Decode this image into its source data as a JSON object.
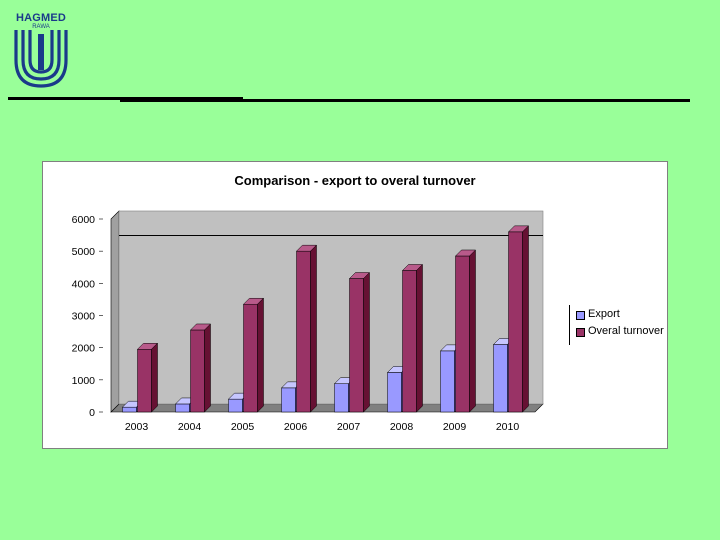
{
  "logo": {
    "name": "HAGMED",
    "subtitle": "RAWA"
  },
  "colors": {
    "background": "#99ff99",
    "export": "#9999ff",
    "turnover": "#993366",
    "plot_area": "#c0c0c0"
  },
  "chart_data": {
    "type": "bar",
    "title": "Comparison - export to overal turnover",
    "categories": [
      "2003",
      "2004",
      "2005",
      "2006",
      "2007",
      "2008",
      "2009",
      "2010"
    ],
    "series": [
      {
        "name": "Export",
        "values": [
          150,
          250,
          400,
          750,
          880,
          1230,
          1900,
          2100
        ]
      },
      {
        "name": "Overal turnover",
        "values": [
          1950,
          2550,
          3350,
          5000,
          4150,
          4400,
          4850,
          5600
        ]
      }
    ],
    "yticks": [
      "0",
      "1000",
      "2000",
      "3000",
      "4000",
      "5000",
      "6000"
    ],
    "ylim": [
      0,
      6000
    ],
    "reference_line": 5300,
    "legend_position": "right",
    "chart_style": "3d-column"
  }
}
